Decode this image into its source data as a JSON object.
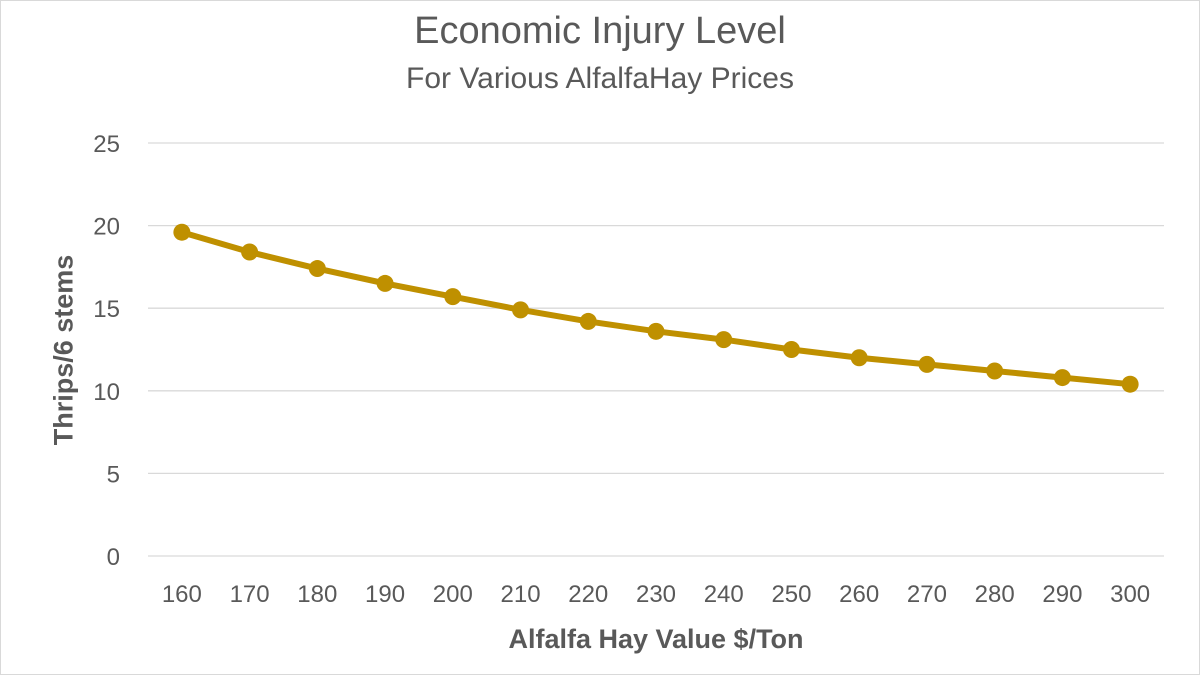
{
  "chart_data": {
    "type": "line",
    "title": "Economic Injury Level",
    "subtitle": "For Various AlfalfaHay Prices",
    "xlabel": "Alfalfa Hay Value $/Ton",
    "ylabel": "Thrips/6 stems",
    "categories": [
      "160",
      "170",
      "180",
      "190",
      "200",
      "210",
      "220",
      "230",
      "240",
      "250",
      "260",
      "270",
      "280",
      "290",
      "300"
    ],
    "series": [
      {
        "name": "Thrips/6 stems",
        "color": "#bf9000",
        "values": [
          19.6,
          18.4,
          17.4,
          16.5,
          15.7,
          14.9,
          14.2,
          13.6,
          13.1,
          12.5,
          12.0,
          11.6,
          11.2,
          10.8,
          10.4
        ]
      }
    ],
    "ylim": [
      0,
      25
    ],
    "yticks": [
      0,
      5,
      10,
      15,
      20,
      25
    ],
    "grid": true,
    "legend": "none"
  }
}
